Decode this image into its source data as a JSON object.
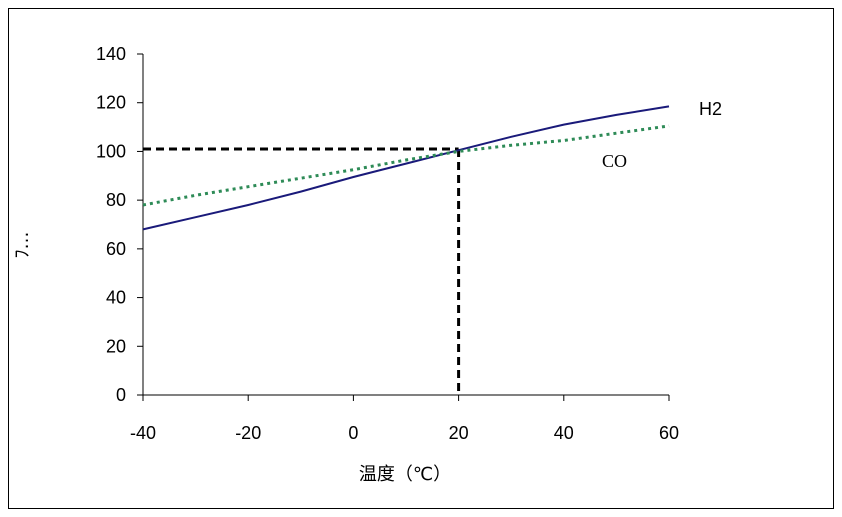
{
  "chart_data": {
    "type": "line",
    "xlabel": "温度（℃）",
    "ylabel": "ﾌ…",
    "xlim": [
      -40,
      60
    ],
    "ylim": [
      0,
      140
    ],
    "x_ticks": [
      "-40",
      "-20",
      "0",
      "20",
      "40",
      "60"
    ],
    "y_ticks": [
      "0",
      "20",
      "40",
      "60",
      "80",
      "100",
      "120",
      "140"
    ],
    "series": [
      {
        "name": "H2",
        "color": "#1a1a7a",
        "style": "solid",
        "x": [
          -40,
          -30,
          -20,
          -10,
          0,
          10,
          20,
          30,
          40,
          50,
          60
        ],
        "y": [
          68,
          73,
          78,
          83.5,
          89.5,
          95,
          100.5,
          106,
          111,
          115,
          118.5
        ]
      },
      {
        "name": "CO",
        "color": "#2e8b57",
        "style": "dotted",
        "x": [
          -40,
          -30,
          -20,
          -10,
          0,
          10,
          20,
          30,
          40,
          50,
          60
        ],
        "y": [
          78,
          82,
          85.5,
          89,
          92.5,
          96.5,
          100,
          102.5,
          104.5,
          107.5,
          110.5
        ]
      }
    ],
    "reference_lines": {
      "x": 20,
      "y": 101,
      "color": "#000000",
      "style": "dashed"
    }
  }
}
